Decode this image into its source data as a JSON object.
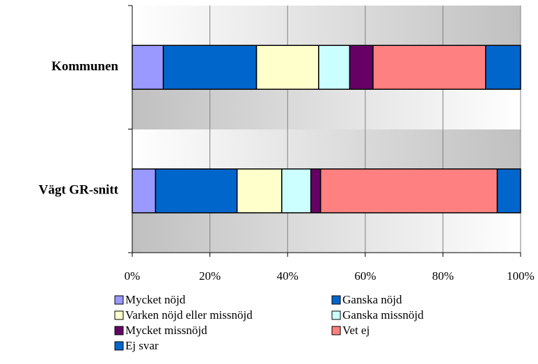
{
  "chart_data": {
    "type": "bar",
    "orientation": "horizontal",
    "stacked": true,
    "categories": [
      "Kommunen",
      "Vägt GR-snitt"
    ],
    "series": [
      {
        "name": "Mycket nöjd",
        "color": "#9999ff",
        "values": [
          8,
          6
        ]
      },
      {
        "name": "Ganska nöjd",
        "color": "#0066cc",
        "values": [
          24,
          21
        ]
      },
      {
        "name": "Varken nöjd eller missnöjd",
        "color": "#ffffcc",
        "values": [
          16,
          11.5
        ]
      },
      {
        "name": "Ganska missnöjd",
        "color": "#ccffff",
        "values": [
          8,
          7.5
        ]
      },
      {
        "name": "Mycket missnöjd",
        "color": "#660066",
        "values": [
          6,
          2.5
        ]
      },
      {
        "name": "Vet ej",
        "color": "#ff8080",
        "values": [
          29,
          45.5
        ]
      },
      {
        "name": "Ej svar",
        "color": "#0066cc",
        "values": [
          9,
          6
        ]
      }
    ],
    "xlim": [
      0,
      100
    ],
    "xticks": [
      {
        "value": 0,
        "label": "0%"
      },
      {
        "value": 20,
        "label": "20%"
      },
      {
        "value": 40,
        "label": "40%"
      },
      {
        "value": 60,
        "label": "60%"
      },
      {
        "value": 80,
        "label": "80%"
      },
      {
        "value": 100,
        "label": "100%"
      }
    ],
    "grid": true
  }
}
